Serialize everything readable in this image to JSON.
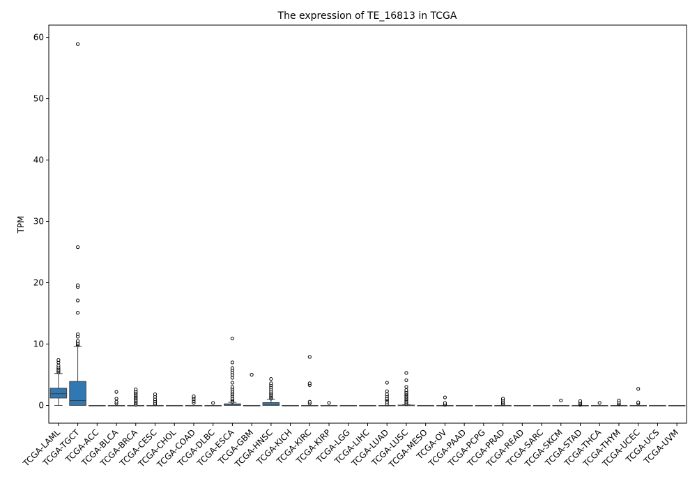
{
  "chart_data": {
    "type": "boxplot",
    "title": "The expression of TE_16813 in TCGA",
    "xlabel": "",
    "ylabel": "TPM",
    "ylim": [
      -2.9,
      62
    ],
    "yticks": [
      0,
      10,
      20,
      30,
      40,
      50,
      60
    ],
    "grid": false,
    "legend": "none",
    "colors": {
      "box": "#2f78b4",
      "edge": "#3f3f3f",
      "background": "#ffffff"
    },
    "categories": [
      "TCGA-LAML",
      "TCGA-TGCT",
      "TCGA-ACC",
      "TCGA-BLCA",
      "TCGA-BRCA",
      "TCGA-CESC",
      "TCGA-CHOL",
      "TCGA-COAD",
      "TCGA-DLBC",
      "TCGA-ESCA",
      "TCGA-GBM",
      "TCGA-HNSC",
      "TCGA-KICH",
      "TCGA-KIRC",
      "TCGA-KIRP",
      "TCGA-LGG",
      "TCGA-LIHC",
      "TCGA-LUAD",
      "TCGA-LUSC",
      "TCGA-MESO",
      "TCGA-OV",
      "TCGA-PAAD",
      "TCGA-PCPG",
      "TCGA-PRAD",
      "TCGA-READ",
      "TCGA-SARC",
      "TCGA-SKCM",
      "TCGA-STAD",
      "TCGA-THCA",
      "TCGA-THYM",
      "TCGA-UCEC",
      "TCGA-UCS",
      "TCGA-UVM"
    ],
    "boxes": [
      {
        "whisker_low": 0,
        "q1": 1.2,
        "median": 1.9,
        "q3": 2.8,
        "whisker_high": 5.2,
        "outliers": [
          5.4,
          5.6,
          5.8,
          6.0,
          6.2,
          6.5,
          7.0,
          7.4
        ]
      },
      {
        "whisker_low": 0,
        "q1": 0,
        "median": 0.8,
        "q3": 3.9,
        "whisker_high": 9.6,
        "outliers": [
          9.8,
          10.0,
          10.2,
          10.5,
          11.2,
          11.6,
          15.1,
          17.1,
          19.3,
          19.6,
          25.8,
          58.9
        ]
      },
      {
        "whisker_low": 0,
        "q1": 0,
        "median": 0,
        "q3": 0,
        "whisker_high": 0,
        "outliers": []
      },
      {
        "whisker_low": 0,
        "q1": 0,
        "median": 0,
        "q3": 0,
        "whisker_high": 0,
        "outliers": [
          0.3,
          0.6,
          1.1,
          2.2
        ]
      },
      {
        "whisker_low": 0,
        "q1": 0,
        "median": 0,
        "q3": 0,
        "whisker_high": 0,
        "outliers": [
          0.1,
          0.3,
          0.5,
          0.7,
          0.9,
          1.1,
          1.3,
          1.5,
          1.7,
          1.9,
          2.1,
          2.3,
          2.6
        ]
      },
      {
        "whisker_low": 0,
        "q1": 0,
        "median": 0,
        "q3": 0,
        "whisker_high": 0,
        "outliers": [
          0.2,
          0.4,
          0.7,
          1.0,
          1.4,
          1.8
        ]
      },
      {
        "whisker_low": 0,
        "q1": 0,
        "median": 0,
        "q3": 0,
        "whisker_high": 0,
        "outliers": []
      },
      {
        "whisker_low": 0,
        "q1": 0,
        "median": 0,
        "q3": 0,
        "whisker_high": 0,
        "outliers": [
          0.4,
          0.7,
          1.0,
          1.3,
          1.5
        ]
      },
      {
        "whisker_low": 0,
        "q1": 0,
        "median": 0,
        "q3": 0,
        "whisker_high": 0,
        "outliers": [
          0.4
        ]
      },
      {
        "whisker_low": 0,
        "q1": 0,
        "median": 0.05,
        "q3": 0.25,
        "whisker_high": 0.5,
        "outliers": [
          0.6,
          0.8,
          1.0,
          1.2,
          1.5,
          1.8,
          2.1,
          2.4,
          2.7,
          3.0,
          3.7,
          4.5,
          5.0,
          5.4,
          5.8,
          6.1,
          7.0,
          10.9
        ]
      },
      {
        "whisker_low": 0,
        "q1": 0,
        "median": 0,
        "q3": 0,
        "whisker_high": 0,
        "outliers": [
          5.0
        ]
      },
      {
        "whisker_low": 0,
        "q1": 0,
        "median": 0.05,
        "q3": 0.45,
        "whisker_high": 1.0,
        "outliers": [
          1.1,
          1.3,
          1.5,
          1.7,
          1.9,
          2.1,
          2.4,
          2.7,
          3.0,
          3.3,
          3.6,
          4.3
        ]
      },
      {
        "whisker_low": 0,
        "q1": 0,
        "median": 0,
        "q3": 0,
        "whisker_high": 0,
        "outliers": []
      },
      {
        "whisker_low": 0,
        "q1": 0,
        "median": 0,
        "q3": 0,
        "whisker_high": 0,
        "outliers": [
          0.3,
          0.6,
          3.3,
          3.6,
          7.9
        ]
      },
      {
        "whisker_low": 0,
        "q1": 0,
        "median": 0,
        "q3": 0,
        "whisker_high": 0,
        "outliers": [
          0.4
        ]
      },
      {
        "whisker_low": 0,
        "q1": 0,
        "median": 0,
        "q3": 0,
        "whisker_high": 0,
        "outliers": []
      },
      {
        "whisker_low": 0,
        "q1": 0,
        "median": 0,
        "q3": 0,
        "whisker_high": 0,
        "outliers": []
      },
      {
        "whisker_low": 0,
        "q1": 0,
        "median": 0,
        "q3": 0,
        "whisker_high": 0,
        "outliers": [
          0.2,
          0.5,
          0.8,
          1.0,
          1.2,
          1.5,
          1.8,
          2.3,
          3.7
        ]
      },
      {
        "whisker_low": 0,
        "q1": 0,
        "median": 0,
        "q3": 0.05,
        "whisker_high": 0.1,
        "outliers": [
          0.2,
          0.4,
          0.6,
          0.8,
          1.0,
          1.2,
          1.4,
          1.6,
          1.8,
          2.0,
          2.2,
          2.5,
          3.0,
          4.1,
          5.3
        ]
      },
      {
        "whisker_low": 0,
        "q1": 0,
        "median": 0,
        "q3": 0,
        "whisker_high": 0,
        "outliers": []
      },
      {
        "whisker_low": 0,
        "q1": 0,
        "median": 0,
        "q3": 0,
        "whisker_high": 0,
        "outliers": [
          0.1,
          0.2,
          0.4,
          1.3
        ]
      },
      {
        "whisker_low": 0,
        "q1": 0,
        "median": 0,
        "q3": 0,
        "whisker_high": 0,
        "outliers": []
      },
      {
        "whisker_low": 0,
        "q1": 0,
        "median": 0,
        "q3": 0,
        "whisker_high": 0,
        "outliers": []
      },
      {
        "whisker_low": 0,
        "q1": 0,
        "median": 0,
        "q3": 0,
        "whisker_high": 0,
        "outliers": [
          0.2,
          0.4,
          0.6,
          0.9,
          1.1
        ]
      },
      {
        "whisker_low": 0,
        "q1": 0,
        "median": 0,
        "q3": 0,
        "whisker_high": 0,
        "outliers": []
      },
      {
        "whisker_low": 0,
        "q1": 0,
        "median": 0,
        "q3": 0,
        "whisker_high": 0,
        "outliers": []
      },
      {
        "whisker_low": 0,
        "q1": 0,
        "median": 0,
        "q3": 0,
        "whisker_high": 0,
        "outliers": [
          0.8
        ]
      },
      {
        "whisker_low": 0,
        "q1": 0,
        "median": 0,
        "q3": 0,
        "whisker_high": 0,
        "outliers": [
          0.1,
          0.2,
          0.3,
          0.5,
          0.7
        ]
      },
      {
        "whisker_low": 0,
        "q1": 0,
        "median": 0,
        "q3": 0,
        "whisker_high": 0,
        "outliers": [
          0.4
        ]
      },
      {
        "whisker_low": 0,
        "q1": 0,
        "median": 0,
        "q3": 0,
        "whisker_high": 0,
        "outliers": [
          0.2,
          0.3,
          0.5,
          0.8
        ]
      },
      {
        "whisker_low": 0,
        "q1": 0,
        "median": 0,
        "q3": 0,
        "whisker_high": 0,
        "outliers": [
          0.3,
          0.5,
          2.7
        ]
      },
      {
        "whisker_low": 0,
        "q1": 0,
        "median": 0,
        "q3": 0,
        "whisker_high": 0,
        "outliers": []
      },
      {
        "whisker_low": 0,
        "q1": 0,
        "median": 0,
        "q3": 0,
        "whisker_high": 0,
        "outliers": []
      }
    ]
  }
}
